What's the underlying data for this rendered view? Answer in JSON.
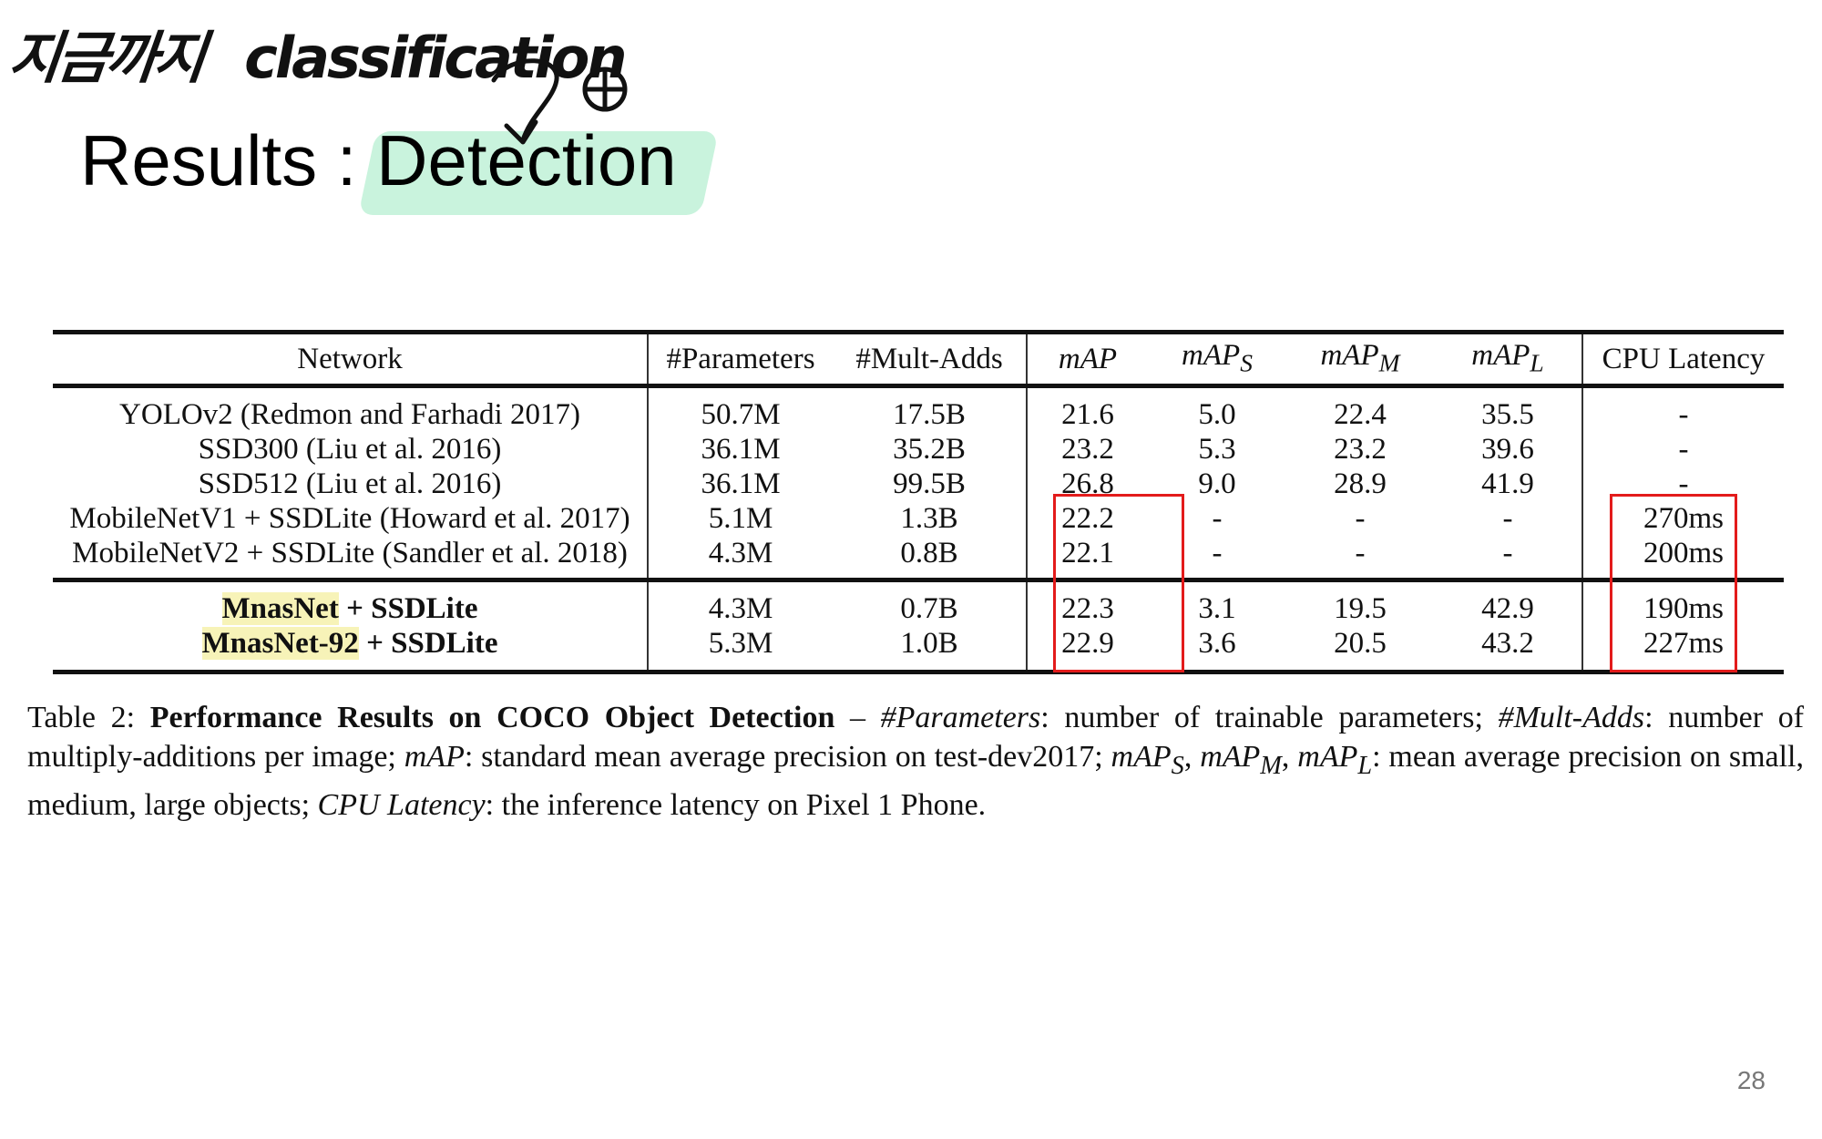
{
  "handwriting": {
    "korean": "지금까지",
    "english": "classification"
  },
  "slide": {
    "title_prefix": "Results : ",
    "title_highlight": "Detection",
    "page_number": "28"
  },
  "table": {
    "headers": {
      "network": "Network",
      "params": "#Parameters",
      "madds": "#Mult-Adds",
      "map": "mAP",
      "maps_base": "mAP",
      "maps_sub": "S",
      "mapm_base": "mAP",
      "mapm_sub": "M",
      "mapl_base": "mAP",
      "mapl_sub": "L",
      "latency": "CPU Latency"
    },
    "baselines": [
      {
        "network": "YOLOv2 (Redmon and Farhadi 2017)",
        "params": "50.7M",
        "madds": "17.5B",
        "map": "21.6",
        "maps": "5.0",
        "mapm": "22.4",
        "mapl": "35.5",
        "latency": "-"
      },
      {
        "network": "SSD300 (Liu et al. 2016)",
        "params": "36.1M",
        "madds": "35.2B",
        "map": "23.2",
        "maps": "5.3",
        "mapm": "23.2",
        "mapl": "39.6",
        "latency": "-"
      },
      {
        "network": "SSD512 (Liu et al. 2016)",
        "params": "36.1M",
        "madds": "99.5B",
        "map": "26.8",
        "maps": "9.0",
        "mapm": "28.9",
        "mapl": "41.9",
        "latency": "-"
      },
      {
        "network": "MobileNetV1 + SSDLite (Howard et al. 2017)",
        "params": "5.1M",
        "madds": "1.3B",
        "map": "22.2",
        "maps": "-",
        "mapm": "-",
        "mapl": "-",
        "latency": "270ms"
      },
      {
        "network": "MobileNetV2 + SSDLite (Sandler et al. 2018)",
        "params": "4.3M",
        "madds": "0.8B",
        "map": "22.1",
        "maps": "-",
        "mapm": "-",
        "mapl": "-",
        "latency": "200ms"
      }
    ],
    "ours": [
      {
        "net_mark": "MnasNet",
        "net_rest": " + SSDLite",
        "params": "4.3M",
        "madds": "0.7B",
        "map": "22.3",
        "maps": "3.1",
        "mapm": "19.5",
        "mapl": "42.9",
        "latency": "190ms"
      },
      {
        "net_mark": "MnasNet-92",
        "net_rest": " + SSDLite",
        "params": "5.3M",
        "madds": "1.0B",
        "map": "22.9",
        "maps": "3.6",
        "mapm": "20.5",
        "mapl": "43.2",
        "latency": "227ms"
      }
    ]
  },
  "caption": {
    "label": "Table 2: ",
    "bold_title": "Performance Results on COCO Object Detection",
    "dash": " – ",
    "t_params": "#Parameters",
    "d_params": ": number of trainable parameters; ",
    "t_madds": "#Mult-Adds",
    "d_madds": ": number of multiply-additions per image; ",
    "t_map": "mAP",
    "d_map": ": standard mean average precision on test-dev2017; ",
    "t_maps": "mAP",
    "s_maps": "S",
    "t_mapm": "mAP",
    "s_mapm": "M",
    "t_mapl": "mAP",
    "s_mapl": "L",
    "d_sizes": ": mean average precision on small, medium, large objects; ",
    "t_latency": "CPU Latency",
    "d_latency": ": the inference latency on Pixel 1 Phone."
  },
  "annotations": {
    "box_color": "#e31b1b",
    "highlight_color": "#c9f3dd"
  }
}
